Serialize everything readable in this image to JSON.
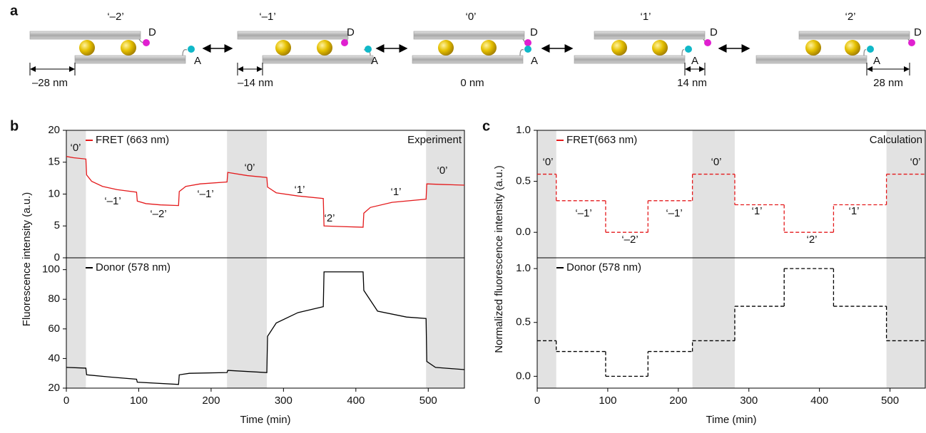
{
  "diagram": {
    "panel_label": "a",
    "donor": "D",
    "acceptor": "A",
    "states": [
      {
        "label": "‘–2’",
        "distance": "–28 nm"
      },
      {
        "label": "‘–1’",
        "distance": "–14 nm"
      },
      {
        "label": "‘0’",
        "distance": "0 nm"
      },
      {
        "label": "‘1’",
        "distance": "14 nm"
      },
      {
        "label": "‘2’",
        "distance": "28 nm"
      }
    ]
  },
  "chart_data": [
    {
      "type": "line",
      "panel_label": "b",
      "corner_label": "Experiment",
      "xlabel": "Time (min)",
      "ylabel": "Fluorescence intensity (a.u.)",
      "xlim": [
        0,
        550
      ],
      "xticks": [
        0,
        100,
        200,
        300,
        400,
        500
      ],
      "shaded": [
        [
          0,
          27
        ],
        [
          222,
          277
        ],
        [
          497,
          550
        ]
      ],
      "subplots": [
        {
          "ylim": [
            0,
            20
          ],
          "yticks": [
            0,
            5,
            10,
            15,
            20
          ],
          "series": [
            {
              "name": "FRET (663 nm)",
              "color": "#e41a1c",
              "x": [
                0,
                10,
                27,
                28,
                35,
                50,
                70,
                97,
                98,
                110,
                130,
                155,
                156,
                165,
                185,
                222,
                223,
                250,
                277,
                278,
                290,
                320,
                355,
                356,
                380,
                410,
                411,
                420,
                450,
                497,
                498,
                520,
                550
              ],
              "values": [
                15.9,
                15.7,
                15.5,
                13.0,
                12.0,
                11.2,
                10.7,
                10.3,
                8.9,
                8.5,
                8.3,
                8.2,
                10.4,
                11.2,
                11.6,
                11.9,
                13.4,
                12.9,
                12.6,
                11.1,
                10.2,
                9.7,
                9.3,
                5.0,
                4.9,
                4.8,
                7.0,
                7.9,
                8.7,
                9.2,
                11.6,
                11.5,
                11.4
              ]
            }
          ],
          "state_labels": [
            "‘0’",
            "‘–1’",
            "‘–2’",
            "‘–1’",
            "‘0’",
            "‘1’",
            "‘2’",
            "‘1’",
            "‘0’"
          ]
        },
        {
          "ylim": [
            20,
            108
          ],
          "yticks": [
            20,
            40,
            60,
            80,
            100
          ],
          "series": [
            {
              "name": "Donor (578 nm)",
              "color": "#000000",
              "x": [
                0,
                27,
                28,
                60,
                97,
                98,
                155,
                156,
                170,
                222,
                223,
                277,
                278,
                290,
                320,
                355,
                356,
                410,
                411,
                430,
                470,
                497,
                498,
                510,
                550
              ],
              "values": [
                34,
                33.5,
                29,
                27.5,
                26,
                24,
                22.5,
                29,
                30,
                30.5,
                32,
                30.5,
                55,
                64,
                71,
                75,
                98.5,
                98.5,
                86,
                72,
                68,
                67,
                38,
                34,
                32.5
              ]
            }
          ]
        }
      ]
    },
    {
      "type": "step",
      "panel_label": "c",
      "corner_label": "Calculation",
      "xlabel": "Time (min)",
      "ylabel": "Normalized fluorescence intensity (a.u.)",
      "xlim": [
        0,
        550
      ],
      "xticks": [
        0,
        100,
        200,
        300,
        400,
        500
      ],
      "shaded": [
        [
          0,
          27
        ],
        [
          220,
          280
        ],
        [
          495,
          550
        ]
      ],
      "bins": [
        0,
        27,
        97,
        157,
        220,
        280,
        350,
        420,
        495,
        550
      ],
      "line_style": "dashed",
      "subplots": [
        {
          "ylim": [
            -0.25,
            1.0
          ],
          "yticks": [
            {
              "value": 0,
              "label": "0.0"
            },
            0.5,
            {
              "value": 1,
              "label": "1.0"
            }
          ],
          "series": [
            {
              "name": "FRET(663 nm)",
              "color": "#e41a1c",
              "values": [
                0.57,
                0.31,
                0.0,
                0.31,
                0.57,
                0.27,
                0.0,
                0.27,
                0.57
              ]
            }
          ],
          "state_labels": [
            "‘0’",
            "‘–1’",
            "‘–2’",
            "‘–1’",
            "‘0’",
            "‘1’",
            "‘2’",
            "‘1’",
            "‘0’"
          ]
        },
        {
          "ylim": [
            -0.11,
            1.1
          ],
          "yticks": [
            {
              "value": 0,
              "label": "0.0"
            },
            0.5,
            {
              "value": 1,
              "label": "1.0"
            }
          ],
          "series": [
            {
              "name": "Donor (578 nm)",
              "color": "#000000",
              "values": [
                0.33,
                0.23,
                0.0,
                0.23,
                0.33,
                0.65,
                1.0,
                0.65,
                0.33
              ]
            }
          ]
        }
      ]
    }
  ]
}
